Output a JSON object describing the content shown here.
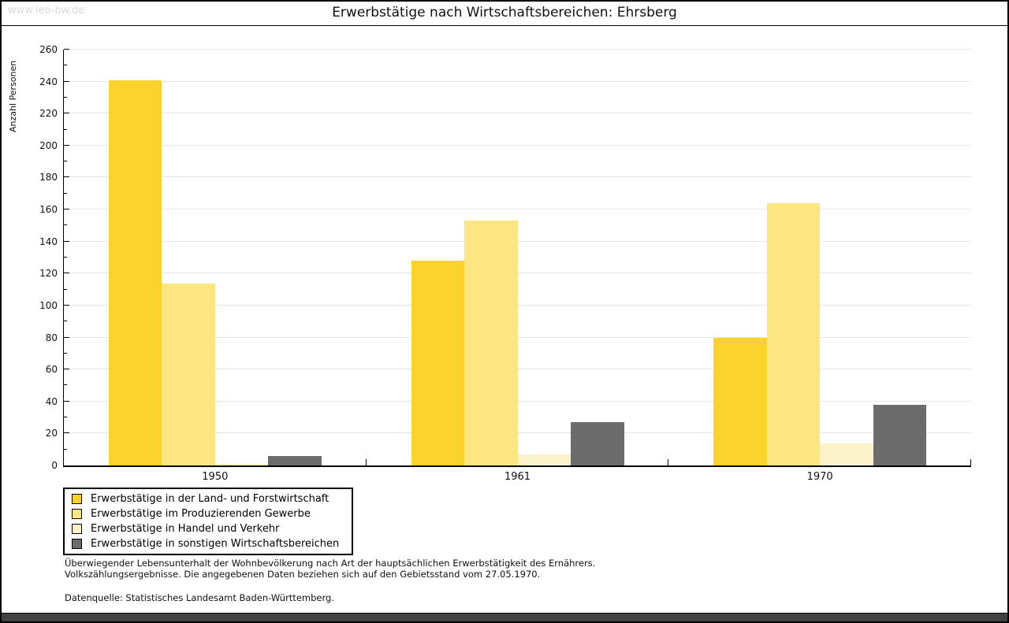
{
  "watermark": "www.leo-bw.de",
  "header": {
    "title": "Erwerbstätige nach Wirtschaftsbereichen: Ehrsberg"
  },
  "chart_data": {
    "type": "bar",
    "title": "Erwerbstätige nach Wirtschaftsbereichen: Ehrsberg",
    "xlabel": "",
    "ylabel": "Anzahl Personen",
    "ylim": [
      0,
      260
    ],
    "ytick_step": 20,
    "yminor_step": 10,
    "grid": true,
    "legend_position": "bottom-left",
    "categories": [
      "1950",
      "1961",
      "1970"
    ],
    "series": [
      {
        "name": "Erwerbstätige in der Land- und Forstwirtschaft",
        "color": "#FCD32D",
        "values": [
          241,
          128,
          80
        ]
      },
      {
        "name": "Erwerbstätige im Produzierenden Gewerbe",
        "color": "#FBE682",
        "values": [
          114,
          153,
          164
        ]
      },
      {
        "name": "Erwerbstätige in Handel und Verkehr",
        "color": "#FAF2C8",
        "values": [
          1,
          7,
          14
        ]
      },
      {
        "name": "Erwerbstätige in sonstigen Wirtschaftsbereichen",
        "color": "#6C6C6C",
        "values": [
          6,
          27,
          38
        ]
      }
    ]
  },
  "footnotes": {
    "line1": "Überwiegender Lebensunterhalt der Wohnbevölkerung nach Art der hauptsächlichen Erwerbstätigkeit des Ernährers.",
    "line2": "Volkszählungsergebnisse. Die angegebenen Daten beziehen sich auf den Gebietsstand vom 27.05.1970.",
    "source": "Datenquelle: Statistisches Landesamt Baden-Württemberg."
  }
}
